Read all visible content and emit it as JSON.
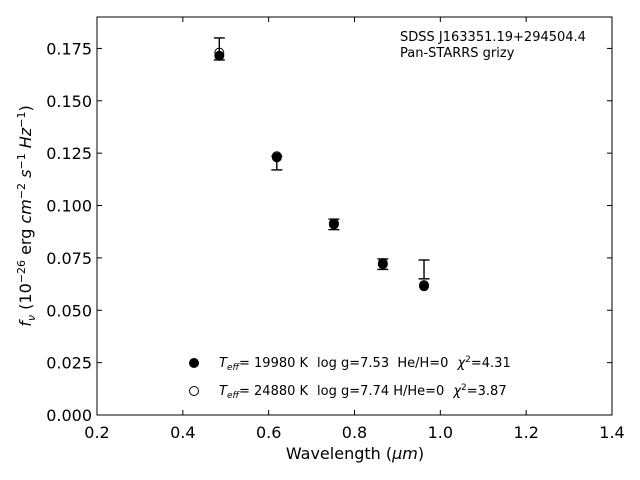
{
  "chart_data": {
    "type": "scatter",
    "xlabel_text": "Wavelength (",
    "xlabel_unit": "μm",
    "xlabel_close": ")",
    "ylabel": "f_ν (10^-26 erg cm^-2 s^-1 Hz^-1)",
    "xlim": [
      0.2,
      1.4
    ],
    "ylim": [
      0.0,
      0.19
    ],
    "xticks": [
      "0.2",
      "0.4",
      "0.6",
      "0.8",
      "1.0",
      "1.2",
      "1.4"
    ],
    "yticks": [
      "0.000",
      "0.025",
      "0.050",
      "0.075",
      "0.100",
      "0.125",
      "0.150",
      "0.175"
    ],
    "annotation": [
      "SDSS J163351.19+294504.4",
      "Pan-STARRS grizy"
    ],
    "observed": [
      {
        "x": 0.485,
        "y": 0.1745,
        "yerr_lo": 0.005,
        "yerr_hi": 0.0055
      },
      {
        "x": 0.619,
        "y": 0.1205,
        "yerr_lo": 0.0035,
        "yerr_hi": 0.003
      },
      {
        "x": 0.752,
        "y": 0.091,
        "yerr_lo": 0.0025,
        "yerr_hi": 0.0025
      },
      {
        "x": 0.866,
        "y": 0.072,
        "yerr_lo": 0.0025,
        "yerr_hi": 0.0025
      },
      {
        "x": 0.962,
        "y": 0.0695,
        "yerr_lo": 0.0045,
        "yerr_hi": 0.0045
      }
    ],
    "series": [
      {
        "name": "Teff= 19980 K  log g=7.53  He/H=0  χ2=4.31",
        "marker": "filled",
        "x": [
          0.485,
          0.619,
          0.752,
          0.866,
          0.962
        ],
        "y": [
          0.1715,
          0.123,
          0.091,
          0.072,
          0.0615
        ]
      },
      {
        "name": "Teff= 24880 K  log g=7.74  H/He=0  χ2=3.87",
        "marker": "open",
        "x": [
          0.485,
          0.619,
          0.752,
          0.866,
          0.962
        ],
        "y": [
          0.173,
          0.1235,
          0.0915,
          0.0725,
          0.062
        ]
      }
    ],
    "legend": [
      {
        "marker": "filled",
        "teff": "= 19980 K",
        "rest": "log g=7.53  He/H=0",
        "chi": "=4.31"
      },
      {
        "marker": "open",
        "teff": "= 24880 K",
        "rest": "log g=7.74  H/He=0",
        "chi": "=3.87"
      }
    ],
    "grid": false,
    "legend_position": "bottom-center"
  }
}
